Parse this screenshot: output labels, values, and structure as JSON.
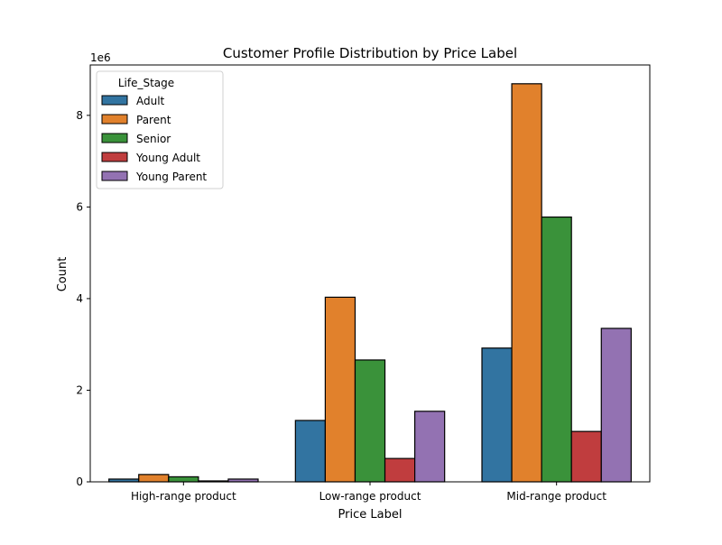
{
  "chart_data": {
    "type": "bar",
    "title": "Customer Profile Distribution by Price Label",
    "xlabel": "Price Label",
    "ylabel": "Count",
    "scale_label": "1e6",
    "categories": [
      "High-range product",
      "Low-range product",
      "Mid-range product"
    ],
    "ylim": [
      0,
      9100000
    ],
    "yticks": [
      0,
      2000000,
      4000000,
      6000000,
      8000000
    ],
    "ytick_labels": [
      "0",
      "2",
      "4",
      "6",
      "8"
    ],
    "grid": false,
    "legend": {
      "title": "Life_Stage",
      "placement": "top-left"
    },
    "series": [
      {
        "name": "Adult",
        "color": "#3274a1",
        "values": [
          60000,
          1340000,
          2920000
        ]
      },
      {
        "name": "Parent",
        "color": "#e1812c",
        "values": [
          160000,
          4030000,
          8690000
        ]
      },
      {
        "name": "Senior",
        "color": "#3a923a",
        "values": [
          110000,
          2660000,
          5780000
        ]
      },
      {
        "name": "Young Adult",
        "color": "#c03d3e",
        "values": [
          20000,
          510000,
          1100000
        ]
      },
      {
        "name": "Young Parent",
        "color": "#9372b2",
        "values": [
          60000,
          1540000,
          3350000
        ]
      }
    ]
  }
}
